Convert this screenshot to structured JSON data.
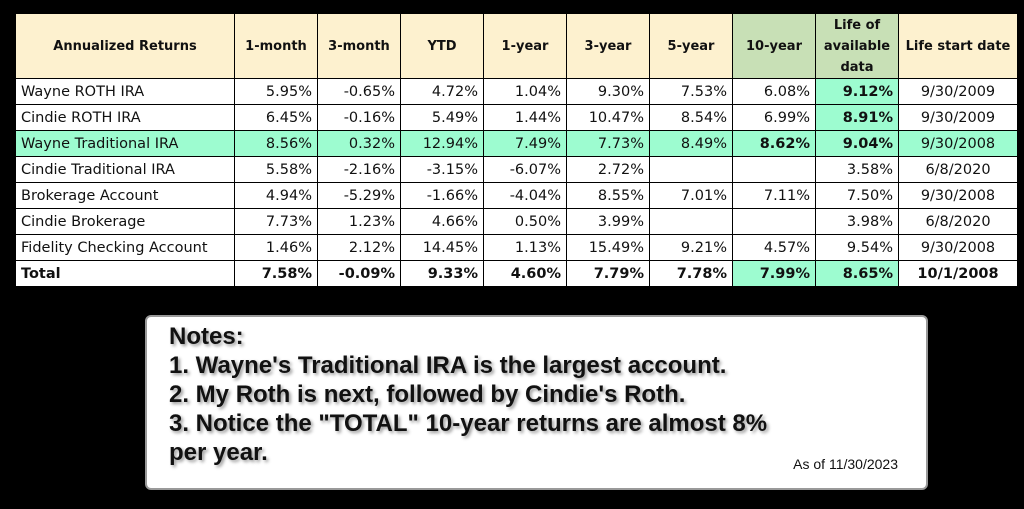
{
  "table": {
    "headers": [
      "Annualized Returns",
      "1-month",
      "3-month",
      "YTD",
      "1-year",
      "3-year",
      "5-year",
      "10-year",
      "Life of available data",
      "Life start date"
    ],
    "highlight_header_cols": [
      7,
      8
    ],
    "rows": [
      {
        "cells": [
          "Wayne ROTH IRA",
          "5.95%",
          "-0.65%",
          "4.72%",
          "1.04%",
          "9.30%",
          "7.53%",
          "6.08%",
          "9.12%",
          "9/30/2009"
        ],
        "green": [
          8
        ],
        "bold": [
          8
        ]
      },
      {
        "cells": [
          "Cindie ROTH IRA",
          "6.45%",
          "-0.16%",
          "5.49%",
          "1.44%",
          "10.47%",
          "8.54%",
          "6.99%",
          "8.91%",
          "9/30/2009"
        ],
        "green": [
          8
        ],
        "bold": [
          8
        ]
      },
      {
        "cells": [
          "Wayne Traditional IRA",
          "8.56%",
          "0.32%",
          "12.94%",
          "7.49%",
          "7.73%",
          "8.49%",
          "8.62%",
          "9.04%",
          "9/30/2008"
        ],
        "green": [
          0,
          1,
          2,
          3,
          4,
          5,
          6,
          7,
          8,
          9
        ],
        "bold": [
          7,
          8
        ]
      },
      {
        "cells": [
          "Cindie Traditional IRA",
          "5.58%",
          "-2.16%",
          "-3.15%",
          "-6.07%",
          "2.72%",
          "",
          "",
          "3.58%",
          "6/8/2020"
        ],
        "green": [],
        "bold": []
      },
      {
        "cells": [
          "Brokerage Account",
          "4.94%",
          "-5.29%",
          "-1.66%",
          "-4.04%",
          "8.55%",
          "7.01%",
          "7.11%",
          "7.50%",
          "9/30/2008"
        ],
        "green": [],
        "bold": []
      },
      {
        "cells": [
          "Cindie Brokerage",
          "7.73%",
          "1.23%",
          "4.66%",
          "0.50%",
          "3.99%",
          "",
          "",
          "3.98%",
          "6/8/2020"
        ],
        "green": [],
        "bold": []
      },
      {
        "cells": [
          "Fidelity Checking Account",
          "1.46%",
          "2.12%",
          "14.45%",
          "1.13%",
          "15.49%",
          "9.21%",
          "4.57%",
          "9.54%",
          "9/30/2008"
        ],
        "green": [],
        "bold": []
      },
      {
        "cells": [
          "Total",
          "7.58%",
          "-0.09%",
          "9.33%",
          "4.60%",
          "7.79%",
          "7.78%",
          "7.99%",
          "8.65%",
          "10/1/2008"
        ],
        "green": [
          7,
          8
        ],
        "bold": [
          0,
          1,
          2,
          3,
          4,
          5,
          6,
          7,
          8,
          9
        ]
      }
    ]
  },
  "notes": {
    "lines": [
      "Notes:",
      "1. Wayne's Traditional IRA is the largest account.",
      "2. My Roth is next, followed by Cindie's Roth.",
      "3. Notice the \"TOTAL\" 10-year returns are almost 8%",
      "per year."
    ],
    "as_of": "As of 11/30/2023"
  },
  "colors": {
    "header": "#fdf1cf",
    "header_highlight": "#c8e0b6",
    "row_highlight": "#9dfcd0"
  }
}
